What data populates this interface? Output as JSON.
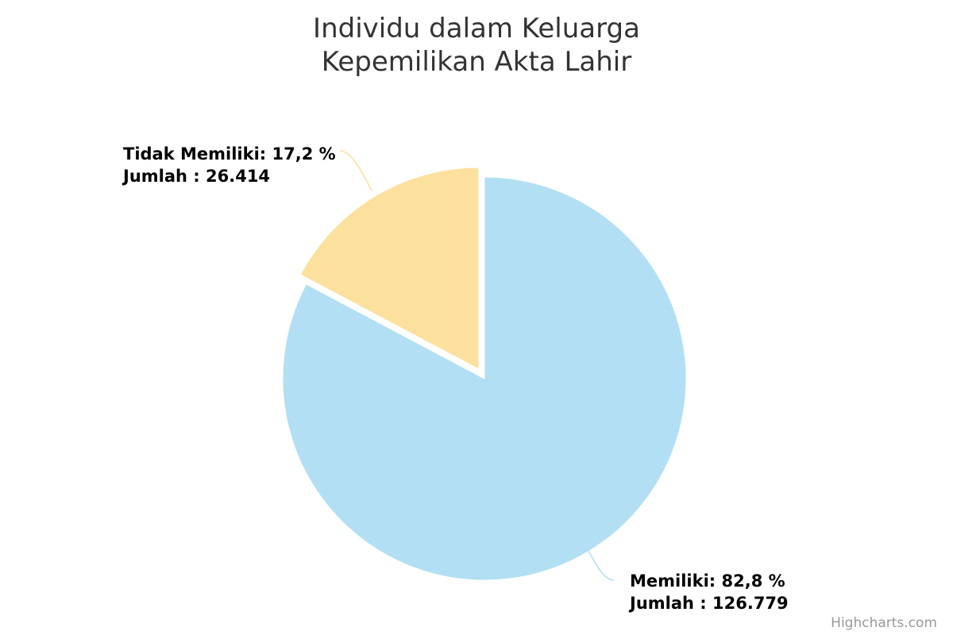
{
  "chart_data": {
    "type": "pie",
    "title": "Individu dalam Keluarga",
    "subtitle": "Kepemilikan Akta Lahir",
    "slices": [
      {
        "name": "Tidak Memiliki",
        "percent_label": "17,2 %",
        "count_label": "26.414",
        "value": 26414,
        "color": "#fce09d",
        "sliced": true
      },
      {
        "name": "Memiliki",
        "percent_label": "82,8 %",
        "count_label": "126.779",
        "value": 126779,
        "color": "#b2dff3",
        "sliced": false
      }
    ],
    "count_prefix": "Jumlah : "
  },
  "credits": "Highcharts.com"
}
